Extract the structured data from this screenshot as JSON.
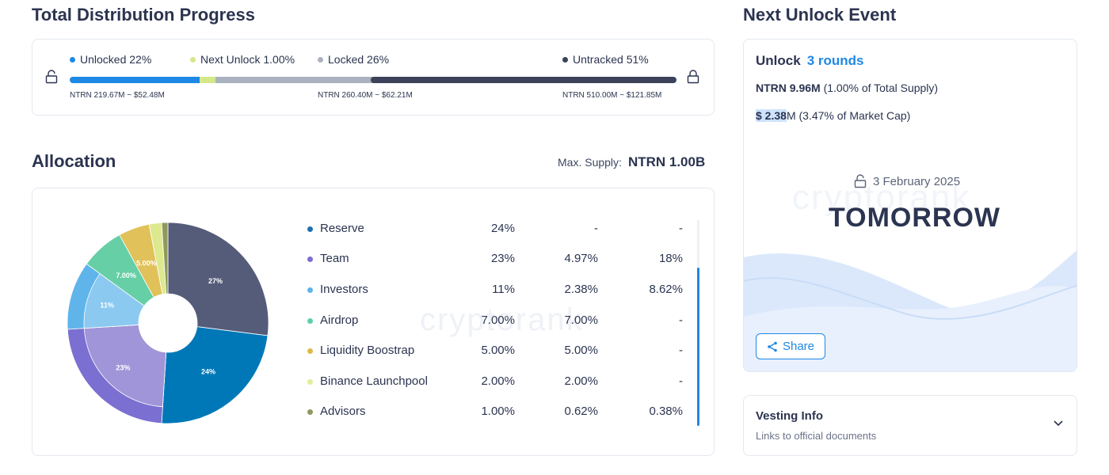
{
  "progress": {
    "title": "Total Distribution Progress",
    "legend": [
      {
        "label": "Unlocked 22%",
        "color": "#1e88e5"
      },
      {
        "label": "Next Unlock 1.00%",
        "color": "#d4e88a"
      },
      {
        "label": "Locked 26%",
        "color": "#aab2c0"
      },
      {
        "label": "Untracked 51%",
        "color": "#3c4259"
      }
    ],
    "bar_fractions": {
      "unlocked": 0.22,
      "next_unlock": 0.01,
      "locked": 0.26,
      "untracked": 0.51
    },
    "amounts": {
      "unlocked": "NTRN 219.67M ~ $52.48M",
      "locked": "NTRN 260.40M ~ $62.21M",
      "untracked": "NTRN 510.00M ~ $121.85M"
    },
    "icons": [
      "lock-open-icon",
      "lock-closed-icon"
    ]
  },
  "allocation": {
    "title": "Allocation",
    "max_supply_label": "Max. Supply:",
    "max_supply_value": "NTRN 1.00B",
    "watermark": "cryptorank",
    "rows": [
      {
        "name": "Reserve",
        "color": "#1f6fb0",
        "total": "24%",
        "unlocked": "-",
        "locked": "-"
      },
      {
        "name": "Team",
        "color": "#7b6fd1",
        "total": "23%",
        "unlocked": "4.97%",
        "locked": "18%"
      },
      {
        "name": "Investors",
        "color": "#5fb4ea",
        "total": "11%",
        "unlocked": "2.38%",
        "locked": "8.62%"
      },
      {
        "name": "Airdrop",
        "color": "#5fcfa7",
        "total": "7.00%",
        "unlocked": "7.00%",
        "locked": "-"
      },
      {
        "name": "Liquidity Boostrap",
        "color": "#e0b94a",
        "total": "5.00%",
        "unlocked": "5.00%",
        "locked": "-"
      },
      {
        "name": "Binance Launchpool",
        "color": "#e2ee98",
        "total": "2.00%",
        "unlocked": "2.00%",
        "locked": "-"
      },
      {
        "name": "Advisors",
        "color": "#8e9a5b",
        "total": "1.00%",
        "unlocked": "0.62%",
        "locked": "0.38%"
      }
    ]
  },
  "chart_data": {
    "type": "pie",
    "title": "",
    "categories": [
      "Reserve",
      "Team",
      "Investors",
      "Airdrop",
      "Liquidity Boostrap",
      "Binance Launchpool",
      "Advisors"
    ],
    "values": [
      24,
      23,
      11,
      7,
      5,
      2,
      1
    ],
    "unlocked_share": [
      0,
      4.97,
      2.38,
      7,
      5,
      2,
      0.62
    ],
    "outer_colors": [
      "#0078b8",
      "#7b6fd1",
      "#5fb4ea",
      "#66cfa6",
      "#e0c15a",
      "#dde98f",
      "#8e9a5b"
    ],
    "inner_colors": [
      "#0078b8",
      "#a095d8",
      "#8cc9f0",
      "#66cfa6",
      "#e0c15a",
      "#dde98f",
      "#8e9a5b"
    ],
    "locked_color": "#555c7a",
    "slice_labels": [
      "24%",
      "23%",
      "11%",
      "7.00%",
      "5.00%",
      "",
      ""
    ],
    "locked_label": "27%"
  },
  "unlock": {
    "title": "Next Unlock Event",
    "label": "Unlock",
    "rounds": "3 rounds",
    "ntrn_amount": "NTRN 9.96M",
    "ntrn_note": "(1.00% of Total Supply)",
    "usd_amount_hl": "$ 2.38",
    "usd_amount_rest": "M",
    "usd_note": "(3.47% of Market Cap)",
    "date": "3 February 2025",
    "when": "TOMORROW",
    "watermark": "cryptorank",
    "share_label": "Share"
  },
  "vesting": {
    "title": "Vesting Info",
    "subtitle": "Links to official documents"
  }
}
